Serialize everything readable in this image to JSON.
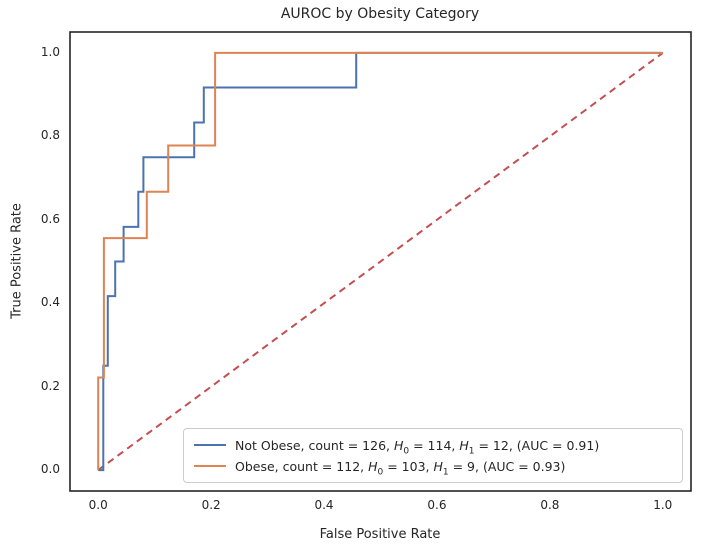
{
  "figure": {
    "title": "AUROC by Obesity Category",
    "xlabel": "False Positive Rate",
    "ylabel": "True Positive Rate"
  },
  "colors": {
    "not_obese_line": "#4C72B0",
    "obese_line": "#DD8452",
    "chance_line": "#C44E52",
    "spine": "#262626",
    "text": "#262626",
    "legend_border": "#cccccc",
    "background": "#ffffff"
  },
  "chart_data": {
    "type": "line",
    "subtype": "roc-step-curves",
    "title": "AUROC by Obesity Category",
    "xlabel": "False Positive Rate",
    "ylabel": "True Positive Rate",
    "xlim": [
      -0.05,
      1.05
    ],
    "ylim": [
      -0.05,
      1.05
    ],
    "grid": false,
    "legend_position": "lower right",
    "x_ticks": [
      0.0,
      0.2,
      0.4,
      0.6,
      0.8,
      1.0
    ],
    "x_tick_labels": [
      "0.0",
      "0.2",
      "0.4",
      "0.6",
      "0.8",
      "1.0"
    ],
    "y_ticks": [
      0.0,
      0.2,
      0.4,
      0.6,
      0.8,
      1.0
    ],
    "y_tick_labels": [
      "0.0",
      "0.2",
      "0.4",
      "0.6",
      "0.8",
      "1.0"
    ],
    "series": [
      {
        "name": "not-obese-roc",
        "legend_text_plain": "Not Obese, count = 126, H0 = 114, H1 = 12, (AUC = 0.91)",
        "label_parts": [
          [
            "text",
            "Not Obese, count = 126, "
          ],
          [
            "var",
            "H"
          ],
          [
            "sub",
            "0"
          ],
          [
            "text",
            " = 114, "
          ],
          [
            "var",
            "H"
          ],
          [
            "sub",
            "1"
          ],
          [
            "text",
            " = 12, (AUC = 0.91)"
          ]
        ],
        "color": "#4C72B0",
        "style": "solid",
        "count": 126,
        "h0": 114,
        "h1": 12,
        "auc": 0.91,
        "points": [
          [
            0,
            0
          ],
          [
            0.009,
            0
          ],
          [
            0.009,
            0.25
          ],
          [
            0.017,
            0.25
          ],
          [
            0.017,
            0.417
          ],
          [
            0.03,
            0.417
          ],
          [
            0.03,
            0.5
          ],
          [
            0.045,
            0.5
          ],
          [
            0.045,
            0.583
          ],
          [
            0.071,
            0.583
          ],
          [
            0.071,
            0.667
          ],
          [
            0.08,
            0.667
          ],
          [
            0.08,
            0.75
          ],
          [
            0.17,
            0.75
          ],
          [
            0.17,
            0.833
          ],
          [
            0.187,
            0.833
          ],
          [
            0.187,
            0.917
          ],
          [
            0.457,
            0.917
          ],
          [
            0.457,
            1.0
          ],
          [
            1,
            1
          ]
        ]
      },
      {
        "name": "obese-roc",
        "legend_text_plain": "Obese, count = 112, H0 = 103, H1 = 9, (AUC = 0.93)",
        "label_parts": [
          [
            "text",
            "Obese, count = 112, "
          ],
          [
            "var",
            "H"
          ],
          [
            "sub",
            "0"
          ],
          [
            "text",
            " = 103, "
          ],
          [
            "var",
            "H"
          ],
          [
            "sub",
            "1"
          ],
          [
            "text",
            " = 9, (AUC = 0.93)"
          ]
        ],
        "color": "#DD8452",
        "style": "solid",
        "count": 112,
        "h0": 103,
        "h1": 9,
        "auc": 0.93,
        "points": [
          [
            0,
            0
          ],
          [
            0,
            0.222
          ],
          [
            0.01,
            0.222
          ],
          [
            0.01,
            0.556
          ],
          [
            0.086,
            0.556
          ],
          [
            0.086,
            0.667
          ],
          [
            0.124,
            0.667
          ],
          [
            0.124,
            0.778
          ],
          [
            0.207,
            0.778
          ],
          [
            0.207,
            1.0
          ],
          [
            1,
            1
          ]
        ]
      },
      {
        "name": "chance-diagonal",
        "color": "#C44E52",
        "style": "dashed",
        "points": [
          [
            0,
            0
          ],
          [
            1,
            1
          ]
        ]
      }
    ]
  }
}
